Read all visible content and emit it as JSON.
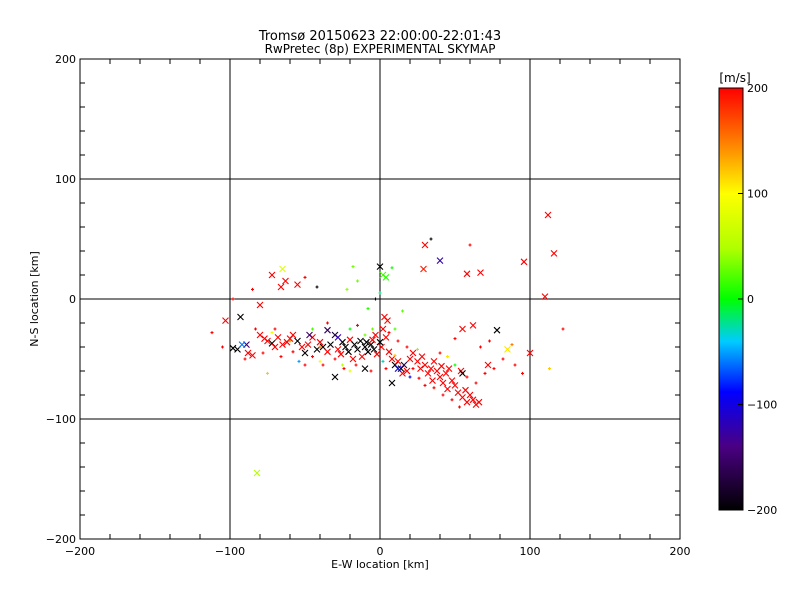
{
  "chart_data": {
    "type": "scatter",
    "title": "Tromsø 20150623 22:00:00-22:01:43",
    "subtitle": "RwPretec (8p) EXPERIMENTAL SKYMAP",
    "xlabel": "E-W location [km]",
    "ylabel": "N-S location [km]",
    "xlim": [
      -200,
      200
    ],
    "ylim": [
      -200,
      200
    ],
    "x_ticks": [
      "−200",
      "−100",
      "0",
      "100",
      "200"
    ],
    "y_ticks": [
      "−200",
      "−100",
      "0",
      "100",
      "200"
    ],
    "x_tick_values": [
      -200,
      -100,
      0,
      100,
      200
    ],
    "y_tick_values": [
      -200,
      -100,
      0,
      100,
      200
    ],
    "grid": true,
    "colorbar": {
      "label": "[m/s]",
      "range": [
        -200,
        200
      ],
      "tick_values": [
        200,
        100,
        0,
        -100,
        -200
      ],
      "tick_labels": [
        "200",
        "100",
        "0",
        "−100",
        "−200"
      ]
    },
    "points": [
      {
        "x": 112,
        "y": 70,
        "v": 200,
        "m": "x"
      },
      {
        "x": 116,
        "y": 38,
        "v": 200,
        "m": "x"
      },
      {
        "x": 110,
        "y": 2,
        "v": 200,
        "m": "x"
      },
      {
        "x": 96,
        "y": 31,
        "v": 200,
        "m": "x"
      },
      {
        "x": 60,
        "y": 45,
        "v": 200,
        "m": "+"
      },
      {
        "x": 67,
        "y": 22,
        "v": 200,
        "m": "x"
      },
      {
        "x": 58,
        "y": 21,
        "v": 200,
        "m": "x"
      },
      {
        "x": 40,
        "y": 32,
        "v": -120,
        "m": "x"
      },
      {
        "x": 34,
        "y": 50,
        "v": -200,
        "m": "+"
      },
      {
        "x": 30,
        "y": 45,
        "v": 200,
        "m": "x"
      },
      {
        "x": 29,
        "y": 25,
        "v": 190,
        "m": "x"
      },
      {
        "x": 0,
        "y": 27,
        "v": -200,
        "m": "x"
      },
      {
        "x": 2,
        "y": 20,
        "v": 20,
        "m": "x"
      },
      {
        "x": 4,
        "y": 18,
        "v": 10,
        "m": "x"
      },
      {
        "x": 8,
        "y": 26,
        "v": 5,
        "m": "+"
      },
      {
        "x": -18,
        "y": 27,
        "v": 30,
        "m": "+"
      },
      {
        "x": -65,
        "y": 25,
        "v": 80,
        "m": "x"
      },
      {
        "x": -72,
        "y": 20,
        "v": 200,
        "m": "x"
      },
      {
        "x": -63,
        "y": 15,
        "v": 200,
        "m": "x"
      },
      {
        "x": -55,
        "y": 12,
        "v": 200,
        "m": "x"
      },
      {
        "x": -66,
        "y": 10,
        "v": 200,
        "m": "x"
      },
      {
        "x": -85,
        "y": 8,
        "v": 200,
        "m": "+"
      },
      {
        "x": -50,
        "y": 18,
        "v": 200,
        "m": "+"
      },
      {
        "x": -15,
        "y": 15,
        "v": 30,
        "m": "+"
      },
      {
        "x": -22,
        "y": 8,
        "v": 40,
        "m": "+"
      },
      {
        "x": -98,
        "y": 0,
        "v": 200,
        "m": "+"
      },
      {
        "x": -80,
        "y": -5,
        "v": 200,
        "m": "x"
      },
      {
        "x": -103,
        "y": -18,
        "v": 200,
        "m": "x"
      },
      {
        "x": -93,
        "y": -15,
        "v": -200,
        "m": "x"
      },
      {
        "x": -112,
        "y": -28,
        "v": 200,
        "m": "+"
      },
      {
        "x": -98,
        "y": -41,
        "v": -200,
        "m": "x"
      },
      {
        "x": -95,
        "y": -42,
        "v": -200,
        "m": "x"
      },
      {
        "x": -89,
        "y": -38,
        "v": -150,
        "m": "x"
      },
      {
        "x": -88,
        "y": -45,
        "v": 200,
        "m": "x"
      },
      {
        "x": -85,
        "y": -47,
        "v": 200,
        "m": "x"
      },
      {
        "x": -80,
        "y": -30,
        "v": 200,
        "m": "x"
      },
      {
        "x": -77,
        "y": -33,
        "v": 200,
        "m": "x"
      },
      {
        "x": -75,
        "y": -35,
        "v": 200,
        "m": "x"
      },
      {
        "x": -72,
        "y": -37,
        "v": -200,
        "m": "x"
      },
      {
        "x": -70,
        "y": -40,
        "v": 200,
        "m": "x"
      },
      {
        "x": -68,
        "y": -32,
        "v": 200,
        "m": "x"
      },
      {
        "x": -65,
        "y": -38,
        "v": 200,
        "m": "x"
      },
      {
        "x": -62,
        "y": -36,
        "v": 200,
        "m": "x"
      },
      {
        "x": -60,
        "y": -33,
        "v": 200,
        "m": "x"
      },
      {
        "x": -58,
        "y": -30,
        "v": 200,
        "m": "x"
      },
      {
        "x": -55,
        "y": -35,
        "v": -200,
        "m": "x"
      },
      {
        "x": -52,
        "y": -40,
        "v": 200,
        "m": "x"
      },
      {
        "x": -50,
        "y": -45,
        "v": -200,
        "m": "x"
      },
      {
        "x": -48,
        "y": -38,
        "v": 200,
        "m": "x"
      },
      {
        "x": -45,
        "y": -32,
        "v": 200,
        "m": "x"
      },
      {
        "x": -42,
        "y": -42,
        "v": -200,
        "m": "x"
      },
      {
        "x": -40,
        "y": -36,
        "v": 200,
        "m": "x"
      },
      {
        "x": -38,
        "y": -40,
        "v": -200,
        "m": "x"
      },
      {
        "x": -35,
        "y": -44,
        "v": 200,
        "m": "x"
      },
      {
        "x": -33,
        "y": -38,
        "v": -200,
        "m": "x"
      },
      {
        "x": -30,
        "y": -30,
        "v": -180,
        "m": "x"
      },
      {
        "x": -28,
        "y": -42,
        "v": 200,
        "m": "x"
      },
      {
        "x": -26,
        "y": -46,
        "v": 200,
        "m": "x"
      },
      {
        "x": -25,
        "y": -36,
        "v": -200,
        "m": "x"
      },
      {
        "x": -23,
        "y": -40,
        "v": -200,
        "m": "x"
      },
      {
        "x": -21,
        "y": -44,
        "v": -200,
        "m": "x"
      },
      {
        "x": -20,
        "y": -34,
        "v": 200,
        "m": "x"
      },
      {
        "x": -18,
        "y": -50,
        "v": 200,
        "m": "x"
      },
      {
        "x": -17,
        "y": -38,
        "v": -200,
        "m": "x"
      },
      {
        "x": -15,
        "y": -42,
        "v": -200,
        "m": "x"
      },
      {
        "x": -13,
        "y": -35,
        "v": -200,
        "m": "x"
      },
      {
        "x": -12,
        "y": -48,
        "v": 200,
        "m": "x"
      },
      {
        "x": -10,
        "y": -40,
        "v": -200,
        "m": "x"
      },
      {
        "x": -9,
        "y": -36,
        "v": -200,
        "m": "x"
      },
      {
        "x": -8,
        "y": -44,
        "v": -200,
        "m": "x"
      },
      {
        "x": -6,
        "y": -38,
        "v": -200,
        "m": "x"
      },
      {
        "x": -5,
        "y": -34,
        "v": 200,
        "m": "x"
      },
      {
        "x": -4,
        "y": -42,
        "v": -200,
        "m": "x"
      },
      {
        "x": -3,
        "y": -30,
        "v": 200,
        "m": "x"
      },
      {
        "x": -2,
        "y": -46,
        "v": 200,
        "m": "x"
      },
      {
        "x": 0,
        "y": -36,
        "v": -200,
        "m": "x"
      },
      {
        "x": 1,
        "y": -40,
        "v": 200,
        "m": "x"
      },
      {
        "x": 2,
        "y": -25,
        "v": 200,
        "m": "x"
      },
      {
        "x": 3,
        "y": -15,
        "v": 200,
        "m": "x"
      },
      {
        "x": 4,
        "y": -32,
        "v": 200,
        "m": "x"
      },
      {
        "x": 5,
        "y": -18,
        "v": 200,
        "m": "x"
      },
      {
        "x": 6,
        "y": -44,
        "v": 200,
        "m": "x"
      },
      {
        "x": 8,
        "y": -50,
        "v": 200,
        "m": "x"
      },
      {
        "x": 10,
        "y": -55,
        "v": -200,
        "m": "x"
      },
      {
        "x": 12,
        "y": -52,
        "v": 200,
        "m": "x"
      },
      {
        "x": 14,
        "y": -58,
        "v": -200,
        "m": "x"
      },
      {
        "x": 15,
        "y": -62,
        "v": 200,
        "m": "x"
      },
      {
        "x": 16,
        "y": -55,
        "v": -170,
        "m": "x"
      },
      {
        "x": 18,
        "y": -60,
        "v": 200,
        "m": "x"
      },
      {
        "x": 20,
        "y": -50,
        "v": 200,
        "m": "x"
      },
      {
        "x": 22,
        "y": -45,
        "v": 200,
        "m": "x"
      },
      {
        "x": -47,
        "y": -30,
        "v": -150,
        "m": "x"
      },
      {
        "x": -35,
        "y": -26,
        "v": -160,
        "m": "x"
      },
      {
        "x": -10,
        "y": -58,
        "v": -200,
        "m": "x"
      },
      {
        "x": 8,
        "y": -70,
        "v": -200,
        "m": "x"
      },
      {
        "x": -30,
        "y": -65,
        "v": -200,
        "m": "x"
      },
      {
        "x": 25,
        "y": -52,
        "v": 200,
        "m": "x"
      },
      {
        "x": 27,
        "y": -58,
        "v": 200,
        "m": "x"
      },
      {
        "x": 28,
        "y": -48,
        "v": 200,
        "m": "x"
      },
      {
        "x": 30,
        "y": -55,
        "v": 200,
        "m": "x"
      },
      {
        "x": 32,
        "y": -62,
        "v": 200,
        "m": "x"
      },
      {
        "x": 34,
        "y": -58,
        "v": 200,
        "m": "x"
      },
      {
        "x": 35,
        "y": -68,
        "v": 200,
        "m": "x"
      },
      {
        "x": 36,
        "y": -52,
        "v": 200,
        "m": "x"
      },
      {
        "x": 38,
        "y": -60,
        "v": 200,
        "m": "x"
      },
      {
        "x": 40,
        "y": -65,
        "v": 200,
        "m": "x"
      },
      {
        "x": 41,
        "y": -56,
        "v": 200,
        "m": "x"
      },
      {
        "x": 42,
        "y": -70,
        "v": 200,
        "m": "x"
      },
      {
        "x": 44,
        "y": -62,
        "v": 200,
        "m": "x"
      },
      {
        "x": 45,
        "y": -75,
        "v": 200,
        "m": "x"
      },
      {
        "x": 46,
        "y": -58,
        "v": 200,
        "m": "x"
      },
      {
        "x": 48,
        "y": -68,
        "v": 200,
        "m": "x"
      },
      {
        "x": 50,
        "y": -72,
        "v": 200,
        "m": "x"
      },
      {
        "x": 52,
        "y": -78,
        "v": 200,
        "m": "x"
      },
      {
        "x": 54,
        "y": -60,
        "v": 200,
        "m": "x"
      },
      {
        "x": 55,
        "y": -82,
        "v": 200,
        "m": "x"
      },
      {
        "x": 57,
        "y": -76,
        "v": 200,
        "m": "x"
      },
      {
        "x": 58,
        "y": -86,
        "v": 200,
        "m": "x"
      },
      {
        "x": 60,
        "y": -80,
        "v": 200,
        "m": "x"
      },
      {
        "x": 62,
        "y": -84,
        "v": 200,
        "m": "x"
      },
      {
        "x": 64,
        "y": -88,
        "v": 200,
        "m": "x"
      },
      {
        "x": 66,
        "y": -86,
        "v": 200,
        "m": "x"
      },
      {
        "x": 62,
        "y": -22,
        "v": 200,
        "m": "x"
      },
      {
        "x": 55,
        "y": -25,
        "v": 200,
        "m": "x"
      },
      {
        "x": 78,
        "y": -26,
        "v": -200,
        "m": "x"
      },
      {
        "x": 85,
        "y": -42,
        "v": 110,
        "m": "x"
      },
      {
        "x": 100,
        "y": -45,
        "v": 200,
        "m": "x"
      },
      {
        "x": 72,
        "y": -55,
        "v": 200,
        "m": "x"
      },
      {
        "x": 55,
        "y": -62,
        "v": -200,
        "m": "x"
      },
      {
        "x": -82,
        "y": -145,
        "v": 50,
        "m": "x"
      },
      {
        "x": -72,
        "y": -28,
        "v": 90,
        "m": "+"
      },
      {
        "x": -75,
        "y": -62,
        "v": 120,
        "m": "+"
      },
      {
        "x": -92,
        "y": -38,
        "v": -60,
        "m": "x"
      },
      {
        "x": -45,
        "y": -25,
        "v": 20,
        "m": "+"
      },
      {
        "x": -20,
        "y": -25,
        "v": 0,
        "m": "+"
      },
      {
        "x": -5,
        "y": -25,
        "v": 30,
        "m": "+"
      },
      {
        "x": 10,
        "y": -25,
        "v": 20,
        "m": "+"
      },
      {
        "x": 15,
        "y": -10,
        "v": 25,
        "m": "+"
      },
      {
        "x": -8,
        "y": -8,
        "v": 10,
        "m": "+"
      },
      {
        "x": -25,
        "y": -55,
        "v": 60,
        "m": "+"
      },
      {
        "x": 20,
        "y": -65,
        "v": -100,
        "m": "+"
      },
      {
        "x": 25,
        "y": -42,
        "v": 40,
        "m": "+"
      },
      {
        "x": 45,
        "y": -48,
        "v": 110,
        "m": "+"
      },
      {
        "x": 50,
        "y": -55,
        "v": 0,
        "m": "+"
      },
      {
        "x": 88,
        "y": -38,
        "v": 150,
        "m": "+"
      },
      {
        "x": 113,
        "y": -58,
        "v": 120,
        "m": "+"
      },
      {
        "x": -60,
        "y": -35,
        "v": 140,
        "m": "+"
      },
      {
        "x": 0,
        "y": 5,
        "v": -20,
        "m": "+"
      },
      {
        "x": -3,
        "y": 0,
        "v": -200,
        "m": "+"
      },
      {
        "x": -40,
        "y": -52,
        "v": 100,
        "m": "+"
      },
      {
        "x": 10,
        "y": -47,
        "v": 120,
        "m": "+"
      },
      {
        "x": -28,
        "y": -32,
        "v": -120,
        "m": "x"
      },
      {
        "x": 12,
        "y": -58,
        "v": -90,
        "m": "x"
      },
      {
        "x": -105,
        "y": -40,
        "v": 200,
        "m": "+"
      },
      {
        "x": -90,
        "y": -50,
        "v": 200,
        "m": "+"
      },
      {
        "x": -78,
        "y": -45,
        "v": 200,
        "m": "+"
      },
      {
        "x": -66,
        "y": -48,
        "v": 200,
        "m": "+"
      },
      {
        "x": -58,
        "y": -44,
        "v": 200,
        "m": "+"
      },
      {
        "x": -45,
        "y": -48,
        "v": 200,
        "m": "+"
      },
      {
        "x": -38,
        "y": -55,
        "v": 200,
        "m": "+"
      },
      {
        "x": -30,
        "y": -50,
        "v": 200,
        "m": "+"
      },
      {
        "x": -24,
        "y": -58,
        "v": 200,
        "m": "+"
      },
      {
        "x": -16,
        "y": -55,
        "v": 200,
        "m": "+"
      },
      {
        "x": -6,
        "y": -60,
        "v": 200,
        "m": "+"
      },
      {
        "x": 4,
        "y": -58,
        "v": 200,
        "m": "+"
      },
      {
        "x": 6,
        "y": -28,
        "v": 200,
        "m": "+"
      },
      {
        "x": 12,
        "y": -35,
        "v": 200,
        "m": "+"
      },
      {
        "x": 18,
        "y": -40,
        "v": 200,
        "m": "+"
      },
      {
        "x": 22,
        "y": -58,
        "v": 200,
        "m": "+"
      },
      {
        "x": 26,
        "y": -66,
        "v": 200,
        "m": "+"
      },
      {
        "x": 30,
        "y": -72,
        "v": 200,
        "m": "+"
      },
      {
        "x": 36,
        "y": -74,
        "v": 200,
        "m": "+"
      },
      {
        "x": 42,
        "y": -80,
        "v": 200,
        "m": "+"
      },
      {
        "x": 48,
        "y": -84,
        "v": 200,
        "m": "+"
      },
      {
        "x": 53,
        "y": -90,
        "v": 200,
        "m": "+"
      },
      {
        "x": 58,
        "y": -65,
        "v": 200,
        "m": "+"
      },
      {
        "x": 64,
        "y": -70,
        "v": 200,
        "m": "+"
      },
      {
        "x": 70,
        "y": -62,
        "v": 200,
        "m": "+"
      },
      {
        "x": 76,
        "y": -58,
        "v": 200,
        "m": "+"
      },
      {
        "x": 82,
        "y": -50,
        "v": 200,
        "m": "+"
      },
      {
        "x": 90,
        "y": -55,
        "v": 200,
        "m": "+"
      },
      {
        "x": 95,
        "y": -62,
        "v": 200,
        "m": "+"
      },
      {
        "x": 67,
        "y": -40,
        "v": 200,
        "m": "+"
      },
      {
        "x": 73,
        "y": -35,
        "v": 200,
        "m": "+"
      },
      {
        "x": 122,
        "y": -25,
        "v": 200,
        "m": "+"
      },
      {
        "x": 50,
        "y": -33,
        "v": 200,
        "m": "+"
      },
      {
        "x": 40,
        "y": -45,
        "v": 200,
        "m": "+"
      },
      {
        "x": -35,
        "y": -20,
        "v": 200,
        "m": "+"
      },
      {
        "x": -15,
        "y": -22,
        "v": 200,
        "m": "+"
      },
      {
        "x": -50,
        "y": -55,
        "v": 200,
        "m": "+"
      },
      {
        "x": -83,
        "y": -25,
        "v": 200,
        "m": "+"
      },
      {
        "x": -70,
        "y": -25,
        "v": 200,
        "m": "+"
      },
      {
        "x": -40,
        "y": -40,
        "v": 150,
        "m": "+"
      },
      {
        "x": -54,
        "y": -52,
        "v": -50,
        "m": "+"
      },
      {
        "x": -10,
        "y": -30,
        "v": 30,
        "m": "+"
      },
      {
        "x": -20,
        "y": -60,
        "v": 80,
        "m": "+"
      },
      {
        "x": 2,
        "y": -52,
        "v": -30,
        "m": "+"
      },
      {
        "x": -42,
        "y": 10,
        "v": -200,
        "m": "+"
      }
    ]
  }
}
